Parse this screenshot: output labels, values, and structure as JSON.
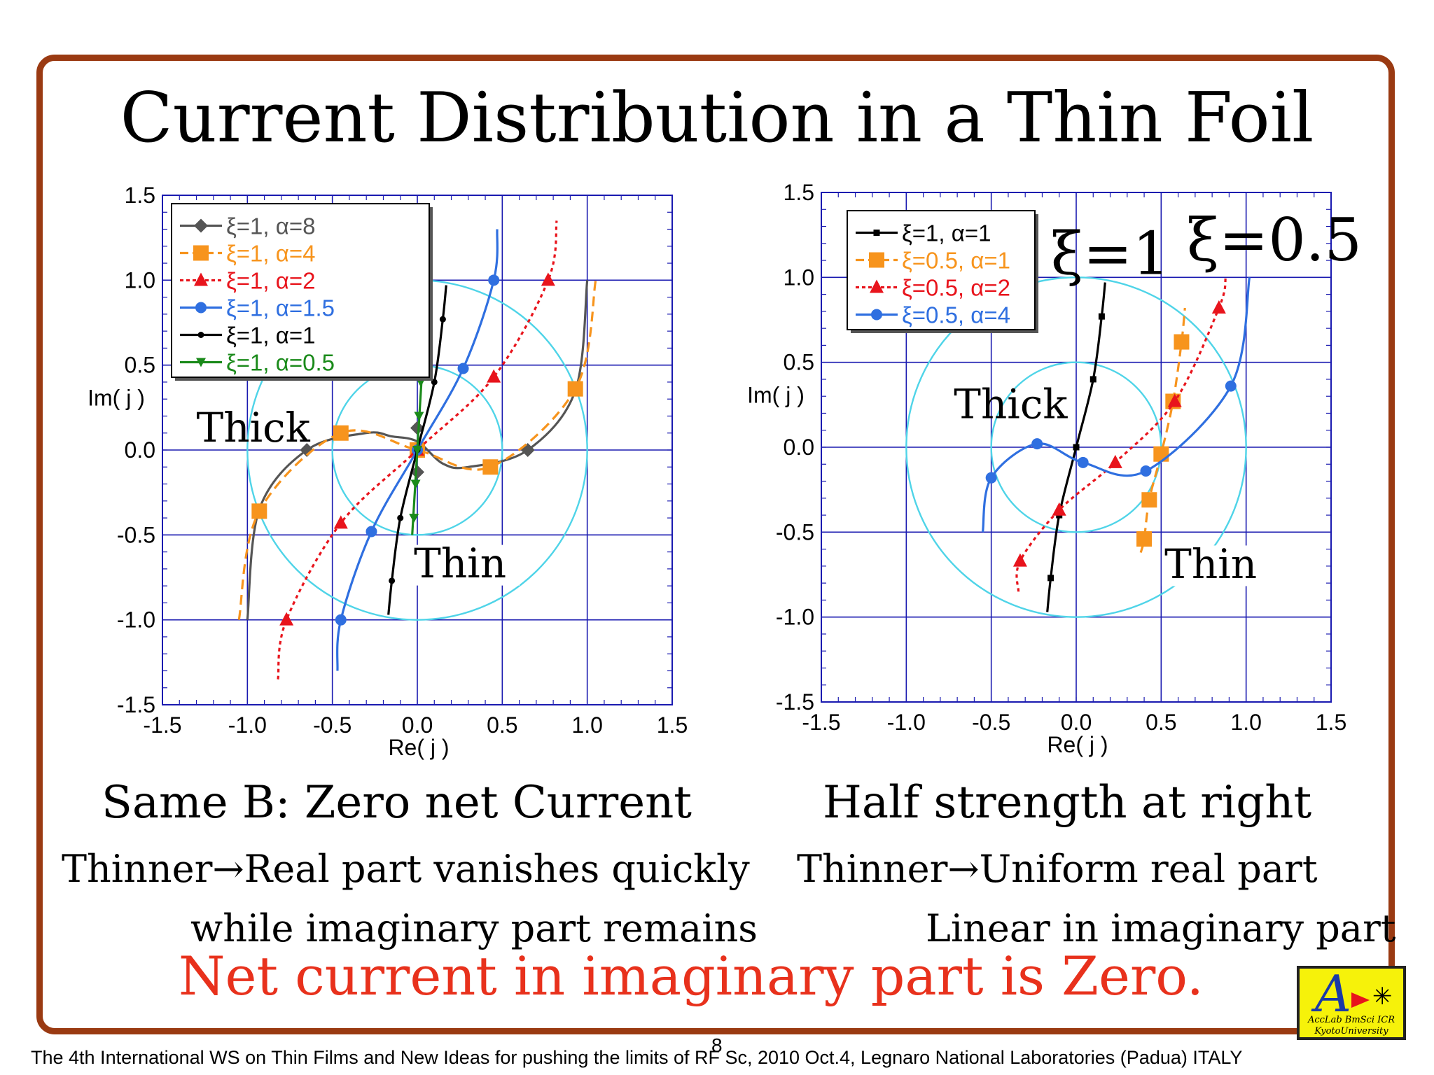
{
  "title": "Current Distribution in a Thin Foil",
  "captions": {
    "left_heading": "Same B: Zero net Current",
    "left_line1": "Thinner→Real part vanishes quickly",
    "left_line2": "while imaginary part remains",
    "right_heading": "Half strength at right",
    "right_line1": "Thinner→Uniform real part",
    "right_line2": "Linear in imaginary part",
    "conclusion": "Net current in imaginary part is Zero."
  },
  "footer": "The 4th International WS on Thin Films  and New Ideas for pushing the limits of RF Sc, 2010 Oct.4, Legnaro National Laboratories (Padua) ITALY",
  "page_number": "8",
  "logo": {
    "letter": "A",
    "line1": "AccLab BmSci ICR",
    "line2": "KyotoUniversity"
  },
  "colors": {
    "frame": "#9a3a12",
    "conclusion": "#e8311c",
    "grid": "#1a1ab0",
    "circles": "#4fd4e8",
    "logo_bg": "#f6f20a"
  },
  "chart_data": [
    {
      "type": "line",
      "xlabel": "Re( j )",
      "ylabel": "Im( j )",
      "xlim": [
        -1.5,
        1.5
      ],
      "ylim": [
        -1.5,
        1.5
      ],
      "x_ticks": [
        "-1.5",
        "-1.0",
        "-0.5",
        "0.0",
        "0.5",
        "1.0",
        "1.5"
      ],
      "y_ticks": [
        "-1.5",
        "-1.0",
        "-0.5",
        "0.0",
        "0.5",
        "1.0",
        "1.5"
      ],
      "grid": true,
      "legend_position": "top-left",
      "reference_circles": [
        1.0,
        0.5
      ],
      "annotations": [
        "Thick",
        "Thin"
      ],
      "series": [
        {
          "name": "ξ=1, α=8",
          "color": "#555555",
          "marker": "diamond",
          "dash": "solid",
          "points": [
            [
              -1.0,
              -1.0
            ],
            [
              -0.93,
              -0.35
            ],
            [
              -0.65,
              0.0
            ],
            [
              -0.3,
              0.1
            ],
            [
              -0.15,
              0.08
            ],
            [
              0.0,
              0.05
            ],
            [
              0.15,
              -0.08
            ],
            [
              0.3,
              -0.1
            ],
            [
              0.65,
              0.0
            ],
            [
              0.93,
              0.35
            ],
            [
              1.0,
              1.0
            ]
          ],
          "markers": [
            [
              -0.65,
              0.0
            ],
            [
              0.0,
              0.13
            ],
            [
              0.0,
              -0.13
            ],
            [
              0.65,
              0.0
            ]
          ]
        },
        {
          "name": "ξ=1, α=4",
          "color": "#f7941d",
          "marker": "square",
          "dash": "dashed",
          "points": [
            [
              -1.05,
              -1.0
            ],
            [
              -0.93,
              -0.36
            ],
            [
              -0.45,
              0.1
            ],
            [
              0.0,
              0.0
            ],
            [
              0.43,
              -0.1
            ],
            [
              0.93,
              0.36
            ],
            [
              1.05,
              1.0
            ]
          ],
          "markers": [
            [
              -0.93,
              -0.36
            ],
            [
              -0.45,
              0.1
            ],
            [
              0.0,
              0.0
            ],
            [
              0.43,
              -0.1
            ],
            [
              0.93,
              0.36
            ]
          ]
        },
        {
          "name": "ξ=1, α=2",
          "color": "#e8141c",
          "marker": "triangle",
          "dash": "dotted",
          "points": [
            [
              -0.82,
              -1.35
            ],
            [
              -0.77,
              -1.0
            ],
            [
              -0.45,
              -0.43
            ],
            [
              0.0,
              0.0
            ],
            [
              0.45,
              0.43
            ],
            [
              0.77,
              1.0
            ],
            [
              0.82,
              1.35
            ]
          ],
          "markers": [
            [
              -0.77,
              -1.0
            ],
            [
              -0.45,
              -0.43
            ],
            [
              0.0,
              0.0
            ],
            [
              0.45,
              0.43
            ],
            [
              0.77,
              1.0
            ]
          ]
        },
        {
          "name": "ξ=1, α=1.5",
          "color": "#2f6fe0",
          "marker": "circle",
          "dash": "solid",
          "points": [
            [
              -0.47,
              -1.3
            ],
            [
              -0.45,
              -1.0
            ],
            [
              -0.27,
              -0.48
            ],
            [
              0.0,
              0.0
            ],
            [
              0.27,
              0.48
            ],
            [
              0.45,
              1.0
            ],
            [
              0.47,
              1.3
            ]
          ],
          "markers": [
            [
              -0.45,
              -1.0
            ],
            [
              -0.27,
              -0.48
            ],
            [
              0.0,
              0.0
            ],
            [
              0.27,
              0.48
            ],
            [
              0.45,
              1.0
            ]
          ]
        },
        {
          "name": "ξ=1, α=1",
          "color": "#000000",
          "marker": "small-circle",
          "dash": "solid",
          "points": [
            [
              -0.17,
              -0.97
            ],
            [
              -0.15,
              -0.77
            ],
            [
              -0.1,
              -0.4
            ],
            [
              0.0,
              0.0
            ],
            [
              0.1,
              0.4
            ],
            [
              0.15,
              0.77
            ],
            [
              0.17,
              0.97
            ]
          ],
          "markers": [
            [
              -0.15,
              -0.77
            ],
            [
              -0.1,
              -0.4
            ],
            [
              0.0,
              0.0
            ],
            [
              0.1,
              0.4
            ],
            [
              0.15,
              0.77
            ]
          ]
        },
        {
          "name": "ξ=1, α=0.5",
          "color": "#1a8a1a",
          "marker": "inverted-triangle",
          "dash": "solid",
          "points": [
            [
              -0.03,
              -0.5
            ],
            [
              0.0,
              0.0
            ],
            [
              0.03,
              0.5
            ]
          ],
          "markers": [
            [
              -0.02,
              -0.4
            ],
            [
              -0.01,
              -0.2
            ],
            [
              0.0,
              0.0
            ],
            [
              0.01,
              0.2
            ],
            [
              0.02,
              0.4
            ]
          ]
        }
      ]
    },
    {
      "type": "line",
      "xlabel": "Re( j )",
      "ylabel": "Im( j )",
      "xlim": [
        -1.5,
        1.5
      ],
      "ylim": [
        -1.5,
        1.5
      ],
      "x_ticks": [
        "-1.5",
        "-1.0",
        "-0.5",
        "0.0",
        "0.5",
        "1.0",
        "1.5"
      ],
      "y_ticks": [
        "-1.5",
        "-1.0",
        "-0.5",
        "0.0",
        "0.5",
        "1.0",
        "1.5"
      ],
      "grid": true,
      "legend_position": "top-left",
      "reference_circles": [
        1.0,
        0.5
      ],
      "annotations": [
        "Thick",
        "Thin",
        "ξ=1",
        "ξ=0.5"
      ],
      "series": [
        {
          "name": "ξ=1, α=1",
          "color": "#000000",
          "marker": "small-square",
          "dash": "solid",
          "points": [
            [
              -0.17,
              -0.97
            ],
            [
              -0.15,
              -0.77
            ],
            [
              -0.1,
              -0.4
            ],
            [
              0.0,
              0.0
            ],
            [
              0.1,
              0.4
            ],
            [
              0.15,
              0.77
            ],
            [
              0.17,
              0.97
            ]
          ],
          "markers": [
            [
              -0.15,
              -0.77
            ],
            [
              -0.1,
              -0.4
            ],
            [
              0.0,
              0.0
            ],
            [
              0.1,
              0.4
            ],
            [
              0.15,
              0.77
            ]
          ]
        },
        {
          "name": "ξ=0.5, α=1",
          "color": "#f7941d",
          "marker": "square",
          "dash": "dashed",
          "points": [
            [
              0.38,
              -0.62
            ],
            [
              0.4,
              -0.54
            ],
            [
              0.43,
              -0.31
            ],
            [
              0.5,
              -0.04
            ],
            [
              0.57,
              0.27
            ],
            [
              0.62,
              0.62
            ],
            [
              0.64,
              0.82
            ]
          ],
          "markers": [
            [
              0.4,
              -0.54
            ],
            [
              0.43,
              -0.31
            ],
            [
              0.5,
              -0.04
            ],
            [
              0.57,
              0.27
            ],
            [
              0.62,
              0.62
            ]
          ]
        },
        {
          "name": "ξ=0.5, α=2",
          "color": "#e8141c",
          "marker": "triangle",
          "dash": "dotted",
          "points": [
            [
              -0.34,
              -0.85
            ],
            [
              -0.33,
              -0.67
            ],
            [
              -0.1,
              -0.37
            ],
            [
              0.23,
              -0.09
            ],
            [
              0.58,
              0.27
            ],
            [
              0.84,
              0.82
            ],
            [
              0.88,
              1.0
            ]
          ],
          "markers": [
            [
              -0.33,
              -0.67
            ],
            [
              -0.1,
              -0.37
            ],
            [
              0.23,
              -0.09
            ],
            [
              0.58,
              0.27
            ],
            [
              0.84,
              0.82
            ]
          ]
        },
        {
          "name": "ξ=0.5, α=4",
          "color": "#2f6fe0",
          "marker": "circle",
          "dash": "solid",
          "points": [
            [
              -0.55,
              -0.5
            ],
            [
              -0.5,
              -0.18
            ],
            [
              -0.23,
              0.02
            ],
            [
              0.04,
              -0.09
            ],
            [
              0.41,
              -0.14
            ],
            [
              0.91,
              0.36
            ],
            [
              1.02,
              1.0
            ]
          ],
          "markers": [
            [
              -0.5,
              -0.18
            ],
            [
              -0.23,
              0.02
            ],
            [
              0.04,
              -0.09
            ],
            [
              0.41,
              -0.14
            ],
            [
              0.91,
              0.36
            ]
          ]
        }
      ]
    }
  ]
}
